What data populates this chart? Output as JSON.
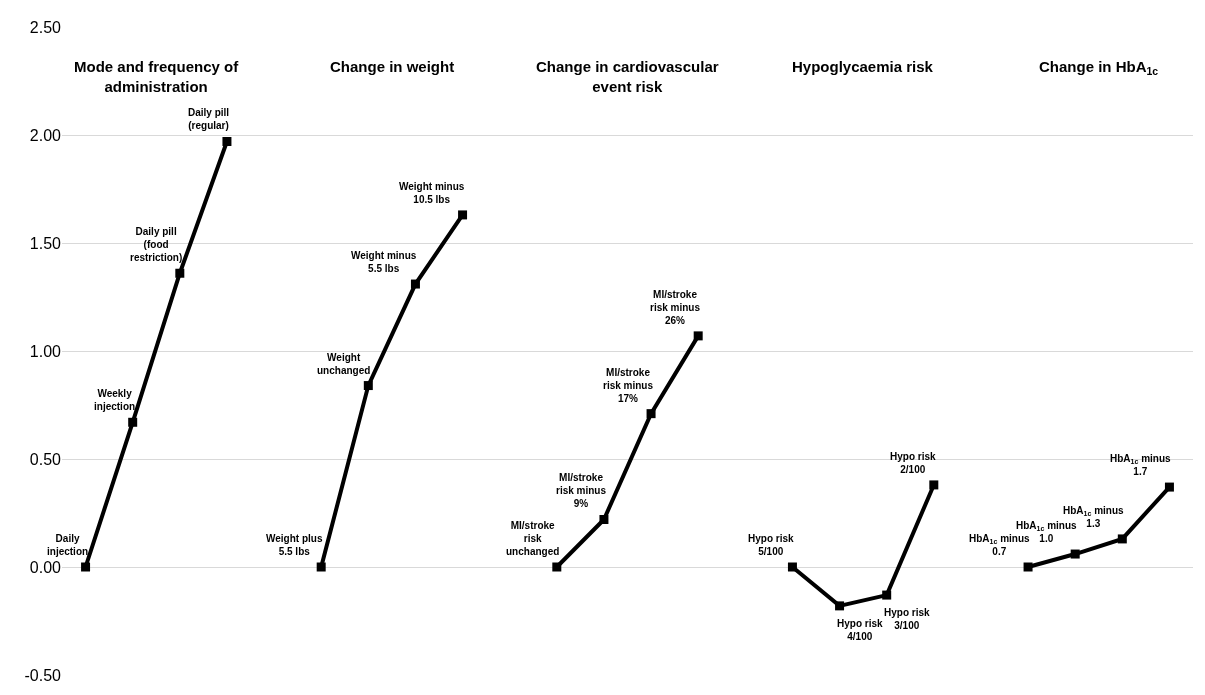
{
  "chart_data": {
    "type": "line",
    "categories": [
      null,
      null,
      null,
      null,
      null,
      null,
      null,
      null,
      null,
      null,
      null,
      null,
      null,
      null,
      null,
      null,
      null,
      null,
      null,
      null,
      null,
      null,
      null,
      null
    ],
    "annotations": [
      "Mode and frequency of administration",
      "Change in weight",
      "Change in cardiovascular event risk",
      "Hypoglycaemia risk",
      "Change in HbA$_{1c}$"
    ],
    "series": [
      {
        "color": "#000000",
        "values": [
          0,
          0.67,
          1.36,
          1.97,
          null,
          null,
          null,
          null,
          null,
          null,
          null,
          null,
          null,
          null,
          null,
          null,
          null,
          null,
          null,
          null,
          null,
          null,
          null,
          null
        ],
        "value_labels": [
          "Daily injection",
          "Weekly injection",
          "Daily pill (food restriction)",
          "Daily pill (regular)",
          null,
          null,
          null,
          null,
          null,
          null,
          null,
          null,
          null,
          null,
          null,
          null,
          null,
          null,
          null,
          null,
          null,
          null,
          null,
          null
        ]
      },
      {
        "color": "#000000",
        "values": [
          null,
          null,
          null,
          null,
          null,
          0,
          0.84,
          1.31,
          1.63,
          null,
          null,
          null,
          null,
          null,
          null,
          null,
          null,
          null,
          null,
          null,
          null,
          null,
          null,
          null
        ],
        "value_labels": [
          null,
          null,
          null,
          null,
          null,
          "Weight plus 5.5 lbs",
          "Weight unchanged",
          "Weight minus 5.5 lbs",
          "Weight minus 10.5 lbs",
          null,
          null,
          null,
          null,
          null,
          null,
          null,
          null,
          null,
          null,
          null,
          null,
          null,
          null,
          null
        ]
      },
      {
        "color": "#000000",
        "values": [
          null,
          null,
          null,
          null,
          null,
          null,
          null,
          null,
          null,
          null,
          0,
          0.22,
          0.71,
          1.07,
          null,
          null,
          null,
          null,
          null,
          null,
          null,
          null,
          null,
          null
        ],
        "value_labels": [
          null,
          null,
          null,
          null,
          null,
          null,
          null,
          null,
          null,
          null,
          "MI/stroke risk unchanged",
          "MI/stroke risk minus 9%",
          "MI/stroke risk minus 17%",
          "MI/stroke risk minus 26%",
          null,
          null,
          null,
          null,
          null,
          null,
          null,
          null,
          null,
          null
        ]
      },
      {
        "color": "#000000",
        "values": [
          null,
          null,
          null,
          null,
          null,
          null,
          null,
          null,
          null,
          null,
          null,
          null,
          null,
          null,
          null,
          0,
          -0.18,
          -0.13,
          0.38,
          null,
          null,
          null,
          null,
          null
        ],
        "value_labels": [
          null,
          null,
          null,
          null,
          null,
          null,
          null,
          null,
          null,
          null,
          null,
          null,
          null,
          null,
          null,
          "Hypo risk 5/100",
          "Hypo risk 4/100",
          "Hypo risk 3/100",
          "Hypo risk 2/100",
          null,
          null,
          null,
          null,
          null
        ]
      },
      {
        "color": "#000000",
        "values": [
          null,
          null,
          null,
          null,
          null,
          null,
          null,
          null,
          null,
          null,
          null,
          null,
          null,
          null,
          null,
          null,
          null,
          null,
          null,
          null,
          0,
          0.06,
          0.13,
          0.37
        ],
        "value_labels": [
          null,
          null,
          null,
          null,
          null,
          null,
          null,
          null,
          null,
          null,
          null,
          null,
          null,
          null,
          null,
          null,
          null,
          null,
          null,
          null,
          "HbA$_{1c}$ minus 0.7",
          "HbA$_{1c}$ minus 1.0",
          "HbA$_{1c}$ minus 1.3",
          "HbA$_{1c}$ minus 1.7"
        ]
      }
    ],
    "ylim": [
      -0.5,
      2.5
    ],
    "yticks": [
      {
        "value": -0.5,
        "label": "-0.50"
      },
      {
        "value": 0,
        "label": "0.00"
      },
      {
        "value": 0.5,
        "label": "0.50"
      },
      {
        "value": 1,
        "label": "1.00"
      },
      {
        "value": 1.5,
        "label": "1.50"
      },
      {
        "value": 2,
        "label": "2.00"
      },
      {
        "value": 2.5,
        "label": "2.50"
      }
    ],
    "grid": "y",
    "marker": "square",
    "line_style": "solid",
    "tick_labels": "y"
  }
}
